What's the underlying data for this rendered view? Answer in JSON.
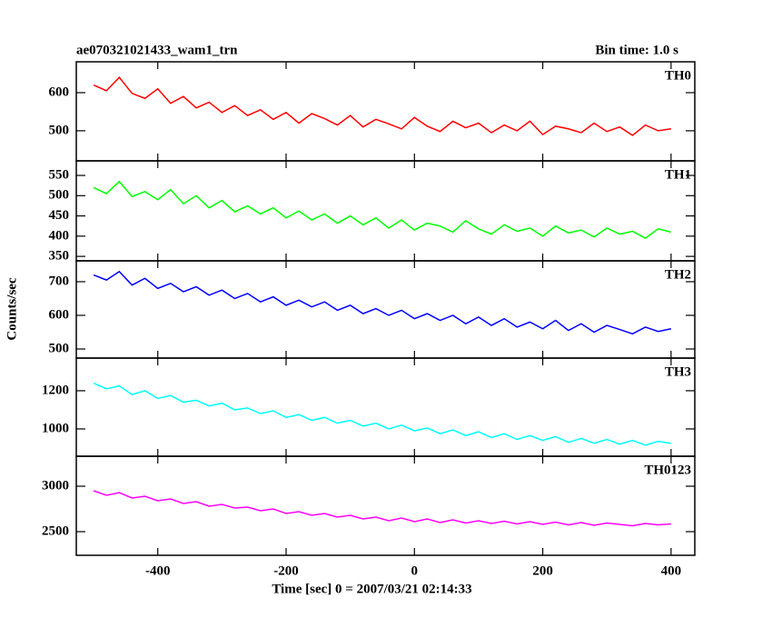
{
  "chart_data": [
    {
      "type": "line",
      "title": "ae070321021433_wam1_trn",
      "subtitle": "Bin time: 1.0 s",
      "label": "TH0",
      "color": "#ff0000",
      "x": [
        -500,
        -480,
        -460,
        -440,
        -420,
        -400,
        -380,
        -360,
        -340,
        -320,
        -300,
        -280,
        -260,
        -240,
        -220,
        -200,
        -180,
        -160,
        -140,
        -120,
        -100,
        -80,
        -60,
        -40,
        -20,
        0,
        20,
        40,
        60,
        80,
        100,
        120,
        140,
        160,
        180,
        200,
        220,
        240,
        260,
        280,
        300,
        320,
        340,
        360,
        380,
        400
      ],
      "values": [
        620,
        605,
        640,
        598,
        585,
        610,
        572,
        590,
        560,
        575,
        548,
        566,
        540,
        555,
        530,
        548,
        520,
        545,
        532,
        515,
        540,
        510,
        530,
        518,
        505,
        535,
        512,
        498,
        525,
        508,
        520,
        495,
        515,
        500,
        525,
        490,
        512,
        505,
        495,
        520,
        498,
        510,
        488,
        515,
        500,
        505
      ],
      "xlim": [
        -527,
        437
      ],
      "xticks": [
        -400,
        -200,
        0,
        200,
        400
      ],
      "ylim": [
        421,
        681
      ],
      "yticks": [
        500,
        600
      ]
    },
    {
      "type": "line",
      "label": "TH1",
      "color": "#00ff00",
      "x": [
        -500,
        -480,
        -460,
        -440,
        -420,
        -400,
        -380,
        -360,
        -340,
        -320,
        -300,
        -280,
        -260,
        -240,
        -220,
        -200,
        -180,
        -160,
        -140,
        -120,
        -100,
        -80,
        -60,
        -40,
        -20,
        0,
        20,
        40,
        60,
        80,
        100,
        120,
        140,
        160,
        180,
        200,
        220,
        240,
        260,
        280,
        300,
        320,
        340,
        360,
        380,
        400
      ],
      "values": [
        520,
        505,
        535,
        498,
        510,
        490,
        515,
        480,
        500,
        470,
        488,
        460,
        475,
        455,
        470,
        445,
        462,
        440,
        455,
        432,
        450,
        428,
        445,
        420,
        440,
        415,
        432,
        425,
        410,
        438,
        418,
        405,
        428,
        412,
        420,
        400,
        425,
        408,
        415,
        398,
        420,
        405,
        412,
        395,
        418,
        410
      ],
      "xlim": [
        -527,
        437
      ],
      "xticks": [
        -400,
        -200,
        0,
        200,
        400
      ],
      "ylim": [
        339,
        586
      ],
      "yticks": [
        350,
        400,
        450,
        500,
        550
      ]
    },
    {
      "type": "line",
      "label": "TH2",
      "ylabel": "Counts/sec",
      "color": "#0000ff",
      "x": [
        -500,
        -480,
        -460,
        -440,
        -420,
        -400,
        -380,
        -360,
        -340,
        -320,
        -300,
        -280,
        -260,
        -240,
        -220,
        -200,
        -180,
        -160,
        -140,
        -120,
        -100,
        -80,
        -60,
        -40,
        -20,
        0,
        20,
        40,
        60,
        80,
        100,
        120,
        140,
        160,
        180,
        200,
        220,
        240,
        260,
        280,
        300,
        320,
        340,
        360,
        380,
        400
      ],
      "values": [
        720,
        705,
        730,
        690,
        710,
        680,
        695,
        670,
        685,
        660,
        675,
        650,
        665,
        640,
        655,
        630,
        645,
        625,
        640,
        615,
        630,
        605,
        620,
        600,
        615,
        590,
        605,
        585,
        600,
        575,
        595,
        570,
        590,
        565,
        580,
        560,
        585,
        555,
        575,
        550,
        570,
        558,
        545,
        565,
        552,
        560
      ],
      "xlim": [
        -527,
        437
      ],
      "xticks": [
        -400,
        -200,
        0,
        200,
        400
      ],
      "ylim": [
        473,
        762
      ],
      "yticks": [
        500,
        600,
        700
      ]
    },
    {
      "type": "line",
      "label": "TH3",
      "color": "#00ffff",
      "x": [
        -500,
        -480,
        -460,
        -440,
        -420,
        -400,
        -380,
        -360,
        -340,
        -320,
        -300,
        -280,
        -260,
        -240,
        -220,
        -200,
        -180,
        -160,
        -140,
        -120,
        -100,
        -80,
        -60,
        -40,
        -20,
        0,
        20,
        40,
        60,
        80,
        100,
        120,
        140,
        160,
        180,
        200,
        220,
        240,
        260,
        280,
        300,
        320,
        340,
        360,
        380,
        400
      ],
      "values": [
        1240,
        1210,
        1225,
        1180,
        1200,
        1160,
        1175,
        1140,
        1150,
        1120,
        1135,
        1100,
        1110,
        1080,
        1095,
        1060,
        1075,
        1045,
        1060,
        1030,
        1045,
        1015,
        1030,
        1000,
        1020,
        990,
        1005,
        975,
        995,
        965,
        985,
        955,
        975,
        945,
        965,
        940,
        960,
        930,
        950,
        925,
        945,
        920,
        940,
        915,
        935,
        925
      ],
      "xlim": [
        -527,
        437
      ],
      "xticks": [
        -400,
        -200,
        0,
        200,
        400
      ],
      "ylim": [
        857,
        1371
      ],
      "yticks": [
        1000,
        1200
      ]
    },
    {
      "type": "line",
      "label": "TH0123",
      "xlabel": "Time [sec] 0 = 2007/03/21 02:14:33",
      "color": "#ff00ff",
      "x": [
        -500,
        -480,
        -460,
        -440,
        -420,
        -400,
        -380,
        -360,
        -340,
        -320,
        -300,
        -280,
        -260,
        -240,
        -220,
        -200,
        -180,
        -160,
        -140,
        -120,
        -100,
        -80,
        -60,
        -40,
        -20,
        0,
        20,
        40,
        60,
        80,
        100,
        120,
        140,
        160,
        180,
        200,
        220,
        240,
        260,
        280,
        300,
        320,
        340,
        360,
        380,
        400
      ],
      "values": [
        2950,
        2900,
        2930,
        2870,
        2890,
        2840,
        2860,
        2810,
        2830,
        2780,
        2800,
        2760,
        2770,
        2730,
        2750,
        2700,
        2720,
        2680,
        2700,
        2660,
        2680,
        2640,
        2660,
        2620,
        2650,
        2610,
        2640,
        2600,
        2630,
        2595,
        2620,
        2590,
        2615,
        2585,
        2610,
        2580,
        2605,
        2575,
        2600,
        2570,
        2595,
        2580,
        2565,
        2590,
        2575,
        2585
      ],
      "xlim": [
        -527,
        437
      ],
      "xticks": [
        -400,
        -200,
        0,
        200,
        400
      ],
      "ylim": [
        2240,
        3330
      ],
      "yticks": [
        2500,
        3000
      ]
    }
  ]
}
